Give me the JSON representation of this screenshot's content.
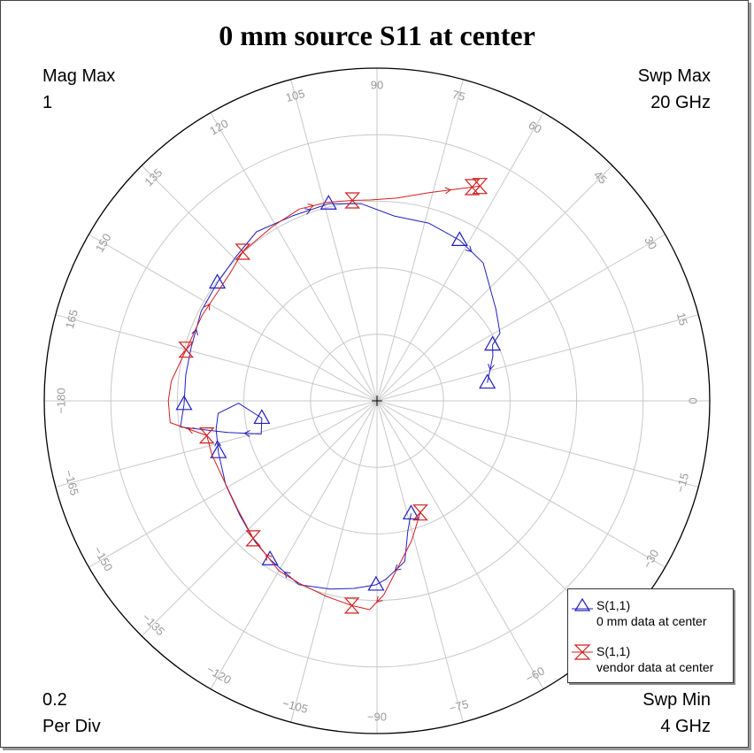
{
  "chart_data": {
    "type": "polar-smith",
    "title": "0 mm source S11 at center",
    "mag_max_label": "Mag Max",
    "mag_max_value": "1",
    "per_div_value": "0.2",
    "per_div_label": "Per Div",
    "swp_max_label": "Swp Max",
    "swp_max_value": "20  GHz",
    "swp_min_label": "Swp Min",
    "swp_min_value": "4  GHz",
    "radial_divisions": [
      0.2,
      0.4,
      0.6,
      0.8,
      1.0
    ],
    "angle_labels": [
      "0",
      "15",
      "30",
      "45",
      "60",
      "75",
      "90",
      "105",
      "120",
      "135",
      "150",
      "165",
      "−180",
      "−165",
      "−150",
      "−135",
      "−120",
      "−105",
      "−90",
      "−75",
      "−60",
      "−45",
      "−30",
      "−15"
    ],
    "grid_color": "#c8c8c8",
    "series": [
      {
        "name": "S(1,1)",
        "description": "0 mm data at center",
        "color": "#1f1fbf",
        "marker": "triangle",
        "points": [
          [
            0.354,
            -73.2
          ],
          [
            0.401,
            -76.6
          ],
          [
            0.49,
            -80.2
          ],
          [
            0.537,
            -87.2
          ],
          [
            0.553,
            -90.3
          ],
          [
            0.568,
            -97.0
          ],
          [
            0.583,
            -104.0
          ],
          [
            0.6,
            -113.0
          ],
          [
            0.575,
            -124.0
          ],
          [
            0.56,
            -131.0
          ],
          [
            0.537,
            -140.0
          ],
          [
            0.52,
            -151.0
          ],
          [
            0.501,
            -162.0
          ],
          [
            0.491,
            -170.0
          ],
          [
            0.479,
            -175.5
          ],
          [
            0.416,
            -179.0
          ],
          [
            0.35,
            -171.5
          ],
          [
            0.362,
            -164.0
          ],
          [
            0.458,
            -168.0
          ],
          [
            0.596,
            -172.4
          ],
          [
            0.58,
            -179.0
          ],
          [
            0.58,
            172.3
          ],
          [
            0.581,
            164.0
          ],
          [
            0.593,
            153.0
          ],
          [
            0.597,
            143.5
          ],
          [
            0.606,
            134.5
          ],
          [
            0.624,
            125.5
          ],
          [
            0.611,
            114.5
          ],
          [
            0.61,
            103.8
          ],
          [
            0.594,
            94.5
          ],
          [
            0.558,
            84.7
          ],
          [
            0.556,
            73.7
          ],
          [
            0.543,
            62.8
          ],
          [
            0.523,
            52.4
          ],
          [
            0.451,
            37.6
          ],
          [
            0.422,
            28.8
          ],
          [
            0.386,
            25.9
          ],
          [
            0.373,
            21.0
          ],
          [
            0.336,
            9.3
          ]
        ]
      },
      {
        "name": "S(1,1)",
        "description": "vendor data at center",
        "color": "#d21f1f",
        "marker": "hourglass",
        "points": [
          [
            0.36,
            -68.8
          ],
          [
            0.432,
            -76.0
          ],
          [
            0.583,
            -88.0
          ],
          [
            0.628,
            -92.0
          ],
          [
            0.62,
            -97.0
          ],
          [
            0.607,
            -104.5
          ],
          [
            0.596,
            -113.0
          ],
          [
            0.59,
            -120.0
          ],
          [
            0.556,
            -132.0
          ],
          [
            0.531,
            -142.0
          ],
          [
            0.519,
            -151.5
          ],
          [
            0.522,
            -162.0
          ],
          [
            0.522,
            -168.5
          ],
          [
            0.625,
            -174.0
          ],
          [
            0.627,
            -180.0
          ],
          [
            0.621,
            174.5
          ],
          [
            0.594,
            165.0
          ],
          [
            0.585,
            154.0
          ],
          [
            0.58,
            146.0
          ],
          [
            0.585,
            139.0
          ],
          [
            0.603,
            132.0
          ],
          [
            0.611,
            121.0
          ],
          [
            0.622,
            112.0
          ],
          [
            0.615,
            104.0
          ],
          [
            0.607,
            97.0
          ],
          [
            0.604,
            92.0
          ],
          [
            0.612,
            84.5
          ],
          [
            0.645,
            76.0
          ],
          [
            0.703,
            66.0
          ],
          [
            0.716,
            64.4
          ]
        ]
      }
    ],
    "legend": {
      "placement": "bottom-right",
      "entries": [
        {
          "label": "S(1,1)",
          "sublabel": "0 mm data at center"
        },
        {
          "label": "S(1,1)",
          "sublabel": "vendor data at center"
        }
      ]
    }
  }
}
